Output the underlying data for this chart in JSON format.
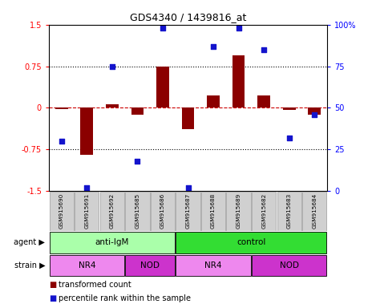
{
  "title": "GDS4340 / 1439816_at",
  "samples": [
    "GSM915690",
    "GSM915691",
    "GSM915692",
    "GSM915685",
    "GSM915686",
    "GSM915687",
    "GSM915688",
    "GSM915689",
    "GSM915682",
    "GSM915683",
    "GSM915684"
  ],
  "bar_values": [
    -0.03,
    -0.85,
    0.07,
    -0.12,
    0.75,
    -0.38,
    0.22,
    0.95,
    0.22,
    -0.04,
    -0.13
  ],
  "scatter_values": [
    30,
    2,
    75,
    18,
    98,
    2,
    87,
    98,
    85,
    32,
    46
  ],
  "ylim_left": [
    -1.5,
    1.5
  ],
  "ylim_right": [
    0,
    100
  ],
  "ytick_labels_left": [
    "-1.5",
    "-0.75",
    "0",
    "0.75",
    "1.5"
  ],
  "yticks_left": [
    -1.5,
    -0.75,
    0,
    0.75,
    1.5
  ],
  "ytick_labels_right": [
    "0",
    "25",
    "50",
    "75",
    "100%"
  ],
  "yticks_right": [
    0,
    25,
    50,
    75,
    100
  ],
  "bar_color": "#8B0000",
  "scatter_color": "#1414CC",
  "dashed_line_color": "#CC0000",
  "dotted_line_color": "#000000",
  "agent_groups": [
    {
      "label": "anti-IgM",
      "start": 0,
      "end": 5,
      "color": "#AAFFAA"
    },
    {
      "label": "control",
      "start": 5,
      "end": 11,
      "color": "#33DD33"
    }
  ],
  "strain_groups": [
    {
      "label": "NR4",
      "start": 0,
      "end": 3,
      "color": "#EE88EE"
    },
    {
      "label": "NOD",
      "start": 3,
      "end": 5,
      "color": "#CC33CC"
    },
    {
      "label": "NR4",
      "start": 5,
      "end": 8,
      "color": "#EE88EE"
    },
    {
      "label": "NOD",
      "start": 8,
      "end": 11,
      "color": "#CC33CC"
    }
  ],
  "legend_bar_label": "transformed count",
  "legend_scatter_label": "percentile rank within the sample",
  "agent_label": "agent",
  "strain_label": "strain",
  "sample_bg_color": "#D0D0D0",
  "sample_border_color": "#999999"
}
